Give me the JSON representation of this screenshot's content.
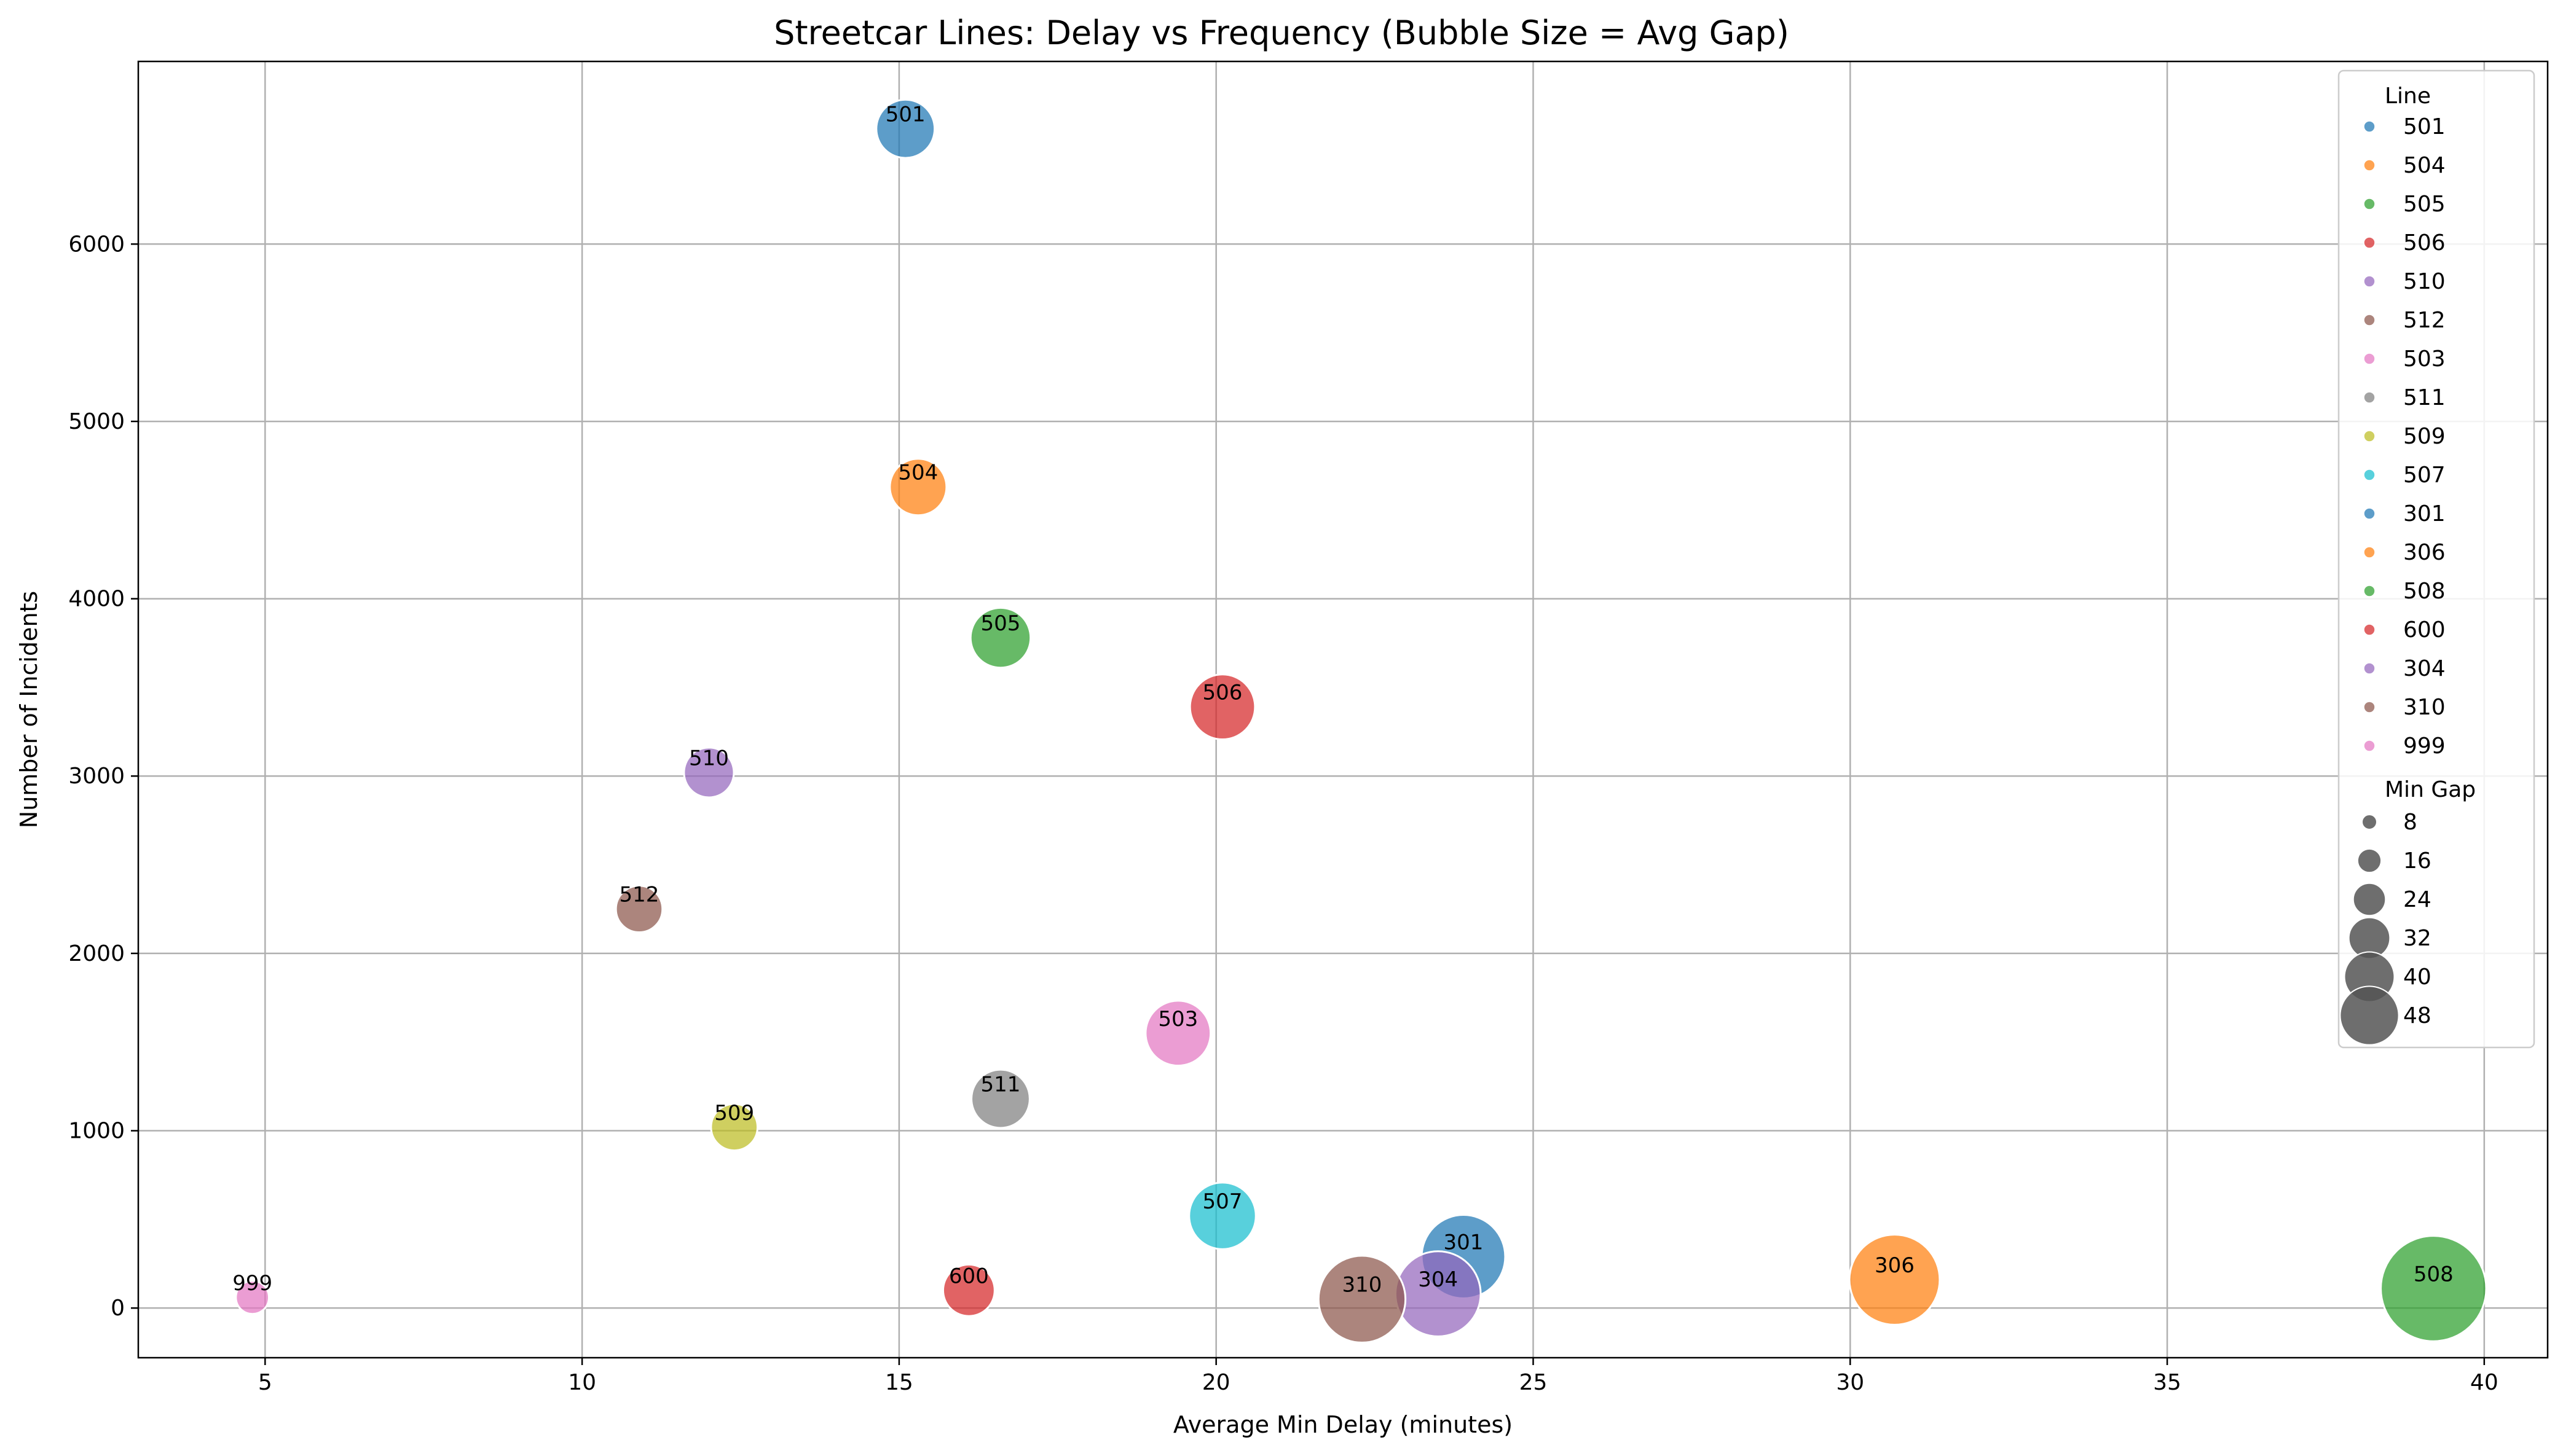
{
  "chart_data": {
    "type": "scatter",
    "title": "Streetcar Lines: Delay vs Frequency (Bubble Size = Avg Gap)",
    "xlabel": "Average Min Delay (minutes)",
    "ylabel": "Number of Incidents",
    "xlim": [
      3,
      41
    ],
    "ylim": [
      -280,
      7030
    ],
    "xticks": [
      5,
      10,
      15,
      20,
      25,
      30,
      35,
      40
    ],
    "yticks": [
      0,
      1000,
      2000,
      3000,
      4000,
      5000,
      6000
    ],
    "grid": true,
    "legend_position": "right",
    "legend_hue_title": "Line",
    "legend_size_title": "Min Gap",
    "size_legend_values": [
      8,
      16,
      24,
      32,
      40,
      48
    ],
    "series": [
      {
        "name": "501",
        "x": 15.1,
        "y": 6650,
        "size": 20,
        "color": "#1f77b4"
      },
      {
        "name": "504",
        "x": 15.3,
        "y": 4630,
        "size": 19,
        "color": "#ff7f0e"
      },
      {
        "name": "505",
        "x": 16.6,
        "y": 3780,
        "size": 21,
        "color": "#2ca02c"
      },
      {
        "name": "506",
        "x": 20.1,
        "y": 3390,
        "size": 24,
        "color": "#d62728"
      },
      {
        "name": "510",
        "x": 12.0,
        "y": 3020,
        "size": 15,
        "color": "#9467bd"
      },
      {
        "name": "512",
        "x": 10.9,
        "y": 2250,
        "size": 13,
        "color": "#8c564b"
      },
      {
        "name": "503",
        "x": 19.4,
        "y": 1550,
        "size": 24,
        "color": "#e377c2"
      },
      {
        "name": "511",
        "x": 16.6,
        "y": 1180,
        "size": 20,
        "color": "#7f7f7f"
      },
      {
        "name": "509",
        "x": 12.4,
        "y": 1020,
        "size": 13,
        "color": "#bcbd22"
      },
      {
        "name": "507",
        "x": 20.1,
        "y": 520,
        "size": 25,
        "color": "#17becf"
      },
      {
        "name": "301",
        "x": 23.9,
        "y": 290,
        "size": 35,
        "color": "#1f77b4"
      },
      {
        "name": "306",
        "x": 30.7,
        "y": 160,
        "size": 39,
        "color": "#ff7f0e"
      },
      {
        "name": "508",
        "x": 39.2,
        "y": 110,
        "size": 48,
        "color": "#2ca02c"
      },
      {
        "name": "600",
        "x": 16.1,
        "y": 100,
        "size": 16,
        "color": "#d62728"
      },
      {
        "name": "304",
        "x": 23.5,
        "y": 80,
        "size": 36,
        "color": "#9467bd"
      },
      {
        "name": "310",
        "x": 22.3,
        "y": 50,
        "size": 37,
        "color": "#8c564b"
      },
      {
        "name": "999",
        "x": 4.8,
        "y": 60,
        "size": 5,
        "color": "#e377c2"
      }
    ]
  }
}
